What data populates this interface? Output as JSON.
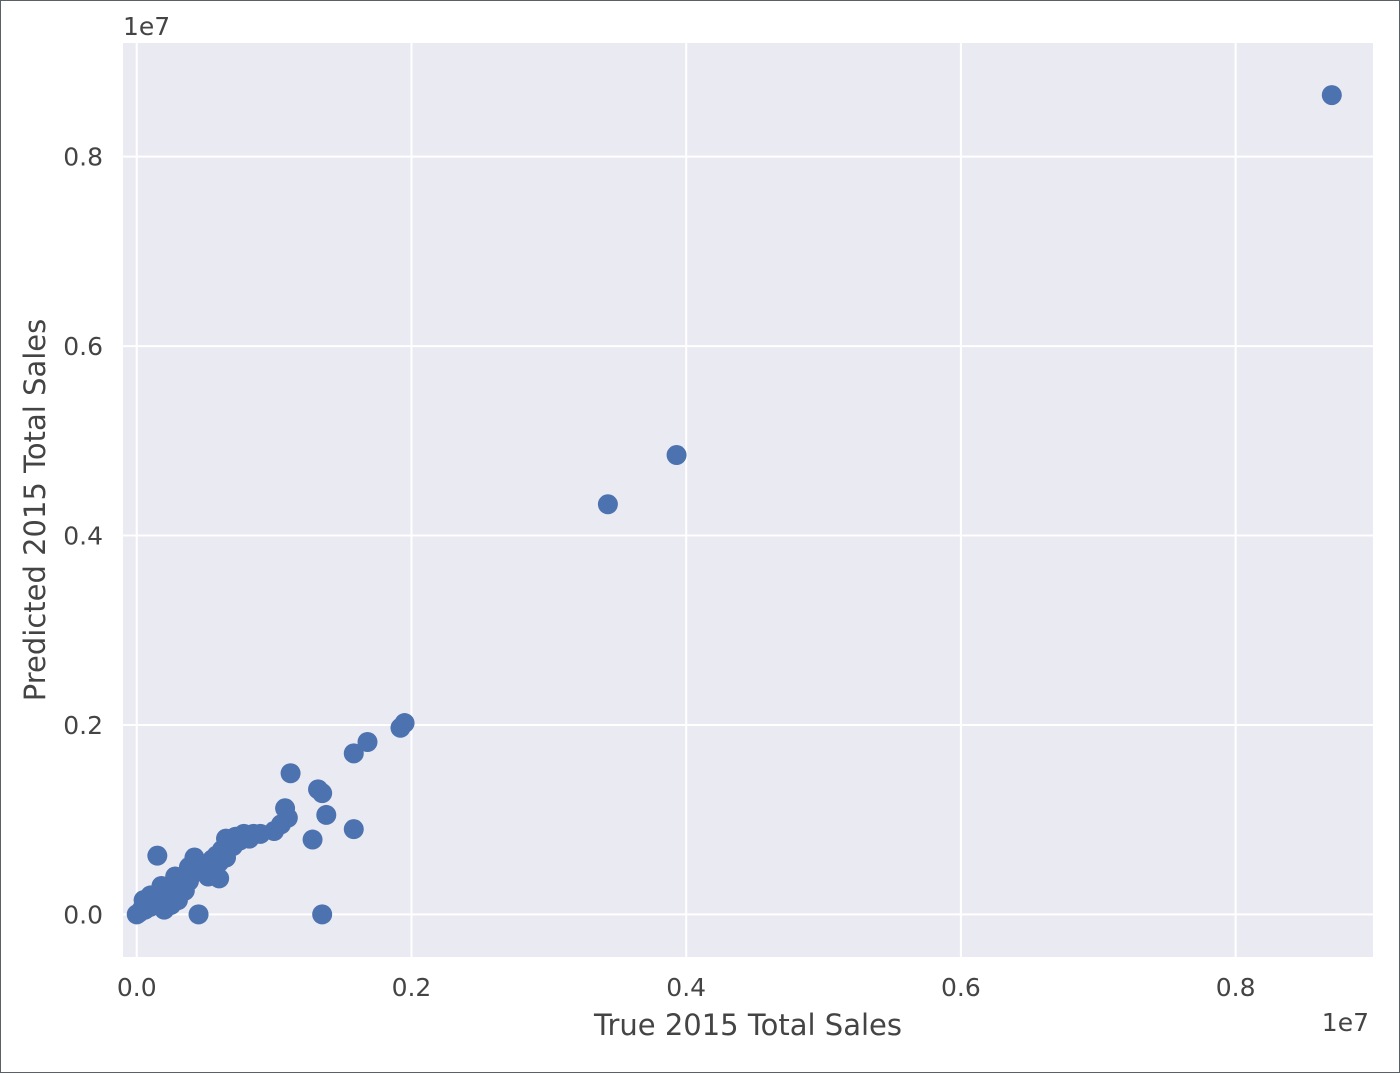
{
  "chart_data": {
    "type": "scatter",
    "xlabel": "True 2015 Total Sales",
    "ylabel": "Predicted 2015 Total Sales",
    "x_offset_label": "1e7",
    "y_offset_label": "1e7",
    "xlim": [
      -0.1,
      9.0
    ],
    "ylim": [
      -0.45,
      9.2
    ],
    "x_ticks": [
      0.0,
      2.0,
      4.0,
      6.0,
      8.0
    ],
    "x_tick_labels": [
      "0.0",
      "0.2",
      "0.4",
      "0.6",
      "0.8"
    ],
    "y_ticks": [
      0.0,
      2.0,
      4.0,
      6.0,
      8.0
    ],
    "y_tick_labels": [
      "0.0",
      "0.2",
      "0.4",
      "0.6",
      "0.8"
    ],
    "grid": true,
    "background_color": "#eaeaf2",
    "grid_color": "#ffffff",
    "marker_color": "#4c72b0",
    "scale_note": "values in units of 1e6 (axis tick labels show units of 1e7)",
    "series": [
      {
        "points": [
          [
            8.7,
            8.65
          ],
          [
            3.93,
            4.85
          ],
          [
            3.43,
            4.33
          ],
          [
            1.95,
            2.02
          ],
          [
            1.92,
            1.97
          ],
          [
            1.68,
            1.82
          ],
          [
            1.58,
            1.7
          ],
          [
            1.12,
            1.49
          ],
          [
            1.32,
            1.32
          ],
          [
            1.35,
            1.28
          ],
          [
            1.38,
            1.05
          ],
          [
            1.58,
            0.9
          ],
          [
            1.28,
            0.79
          ],
          [
            1.35,
            0.0
          ],
          [
            1.08,
            1.12
          ],
          [
            1.1,
            1.02
          ],
          [
            1.05,
            0.95
          ],
          [
            1.0,
            0.88
          ],
          [
            0.85,
            0.85
          ],
          [
            0.78,
            0.85
          ],
          [
            0.72,
            0.82
          ],
          [
            0.65,
            0.8
          ],
          [
            0.7,
            0.72
          ],
          [
            0.62,
            0.68
          ],
          [
            0.58,
            0.62
          ],
          [
            0.55,
            0.58
          ],
          [
            0.6,
            0.55
          ],
          [
            0.5,
            0.52
          ],
          [
            0.48,
            0.45
          ],
          [
            0.45,
            0.48
          ],
          [
            0.42,
            0.6
          ],
          [
            0.4,
            0.42
          ],
          [
            0.38,
            0.35
          ],
          [
            0.35,
            0.38
          ],
          [
            0.32,
            0.3
          ],
          [
            0.3,
            0.28
          ],
          [
            0.28,
            0.32
          ],
          [
            0.25,
            0.22
          ],
          [
            0.22,
            0.25
          ],
          [
            0.2,
            0.18
          ],
          [
            0.18,
            0.2
          ],
          [
            0.15,
            0.62
          ],
          [
            0.15,
            0.12
          ],
          [
            0.12,
            0.15
          ],
          [
            0.1,
            0.08
          ],
          [
            0.08,
            0.1
          ],
          [
            0.06,
            0.05
          ],
          [
            0.04,
            0.06
          ],
          [
            0.02,
            0.02
          ],
          [
            0.0,
            0.0
          ],
          [
            0.05,
            0.15
          ],
          [
            0.1,
            0.2
          ],
          [
            0.2,
            0.05
          ],
          [
            0.25,
            0.1
          ],
          [
            0.3,
            0.15
          ],
          [
            0.35,
            0.25
          ],
          [
            0.45,
            0.0
          ],
          [
            0.6,
            0.38
          ],
          [
            0.65,
            0.6
          ],
          [
            0.75,
            0.78
          ],
          [
            0.82,
            0.8
          ],
          [
            0.9,
            0.85
          ],
          [
            0.52,
            0.4
          ],
          [
            0.38,
            0.5
          ],
          [
            0.28,
            0.4
          ],
          [
            0.18,
            0.3
          ]
        ]
      }
    ]
  }
}
